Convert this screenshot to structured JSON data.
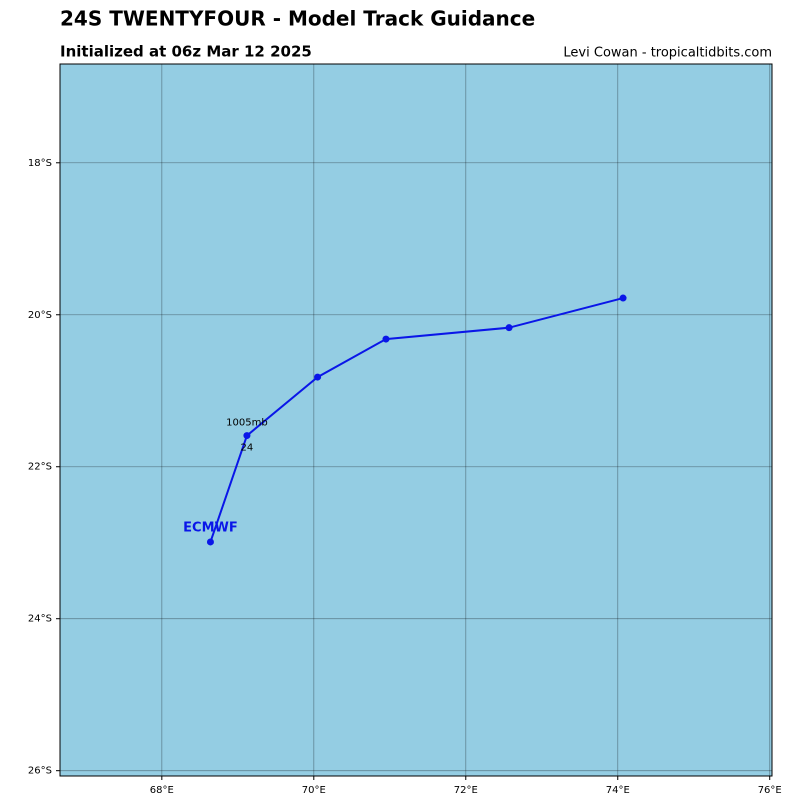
{
  "chart_data": {
    "type": "track",
    "title": "24S TWENTYFOUR - Model Track Guidance",
    "subtitle": "Initialized at 06z Mar 12 2025",
    "credit": "Levi Cowan - tropicaltidbits.com",
    "background_color": "#94cde3",
    "grid": true,
    "xlim": [
      66.66,
      76.03
    ],
    "ylim": [
      -26.07,
      -16.7
    ],
    "xticks": [
      {
        "value": 68,
        "label": "68°E"
      },
      {
        "value": 70,
        "label": "70°E"
      },
      {
        "value": 72,
        "label": "72°E"
      },
      {
        "value": 74,
        "label": "74°E"
      },
      {
        "value": 76,
        "label": "76°E"
      }
    ],
    "yticks": [
      {
        "value": -18,
        "label": "18°S"
      },
      {
        "value": -20,
        "label": "20°S"
      },
      {
        "value": -22,
        "label": "22°S"
      },
      {
        "value": -24,
        "label": "24°S"
      },
      {
        "value": -26,
        "label": "26°S"
      }
    ],
    "series": [
      {
        "name": "ECMWF",
        "color": "#0a16e8",
        "x": [
          68.64,
          69.12,
          70.05,
          70.95,
          72.57,
          74.07
        ],
        "values": [
          -22.99,
          -21.59,
          -20.82,
          -20.32,
          -20.17,
          -19.78
        ]
      }
    ],
    "annotations": [
      "1005mb",
      "24"
    ]
  }
}
